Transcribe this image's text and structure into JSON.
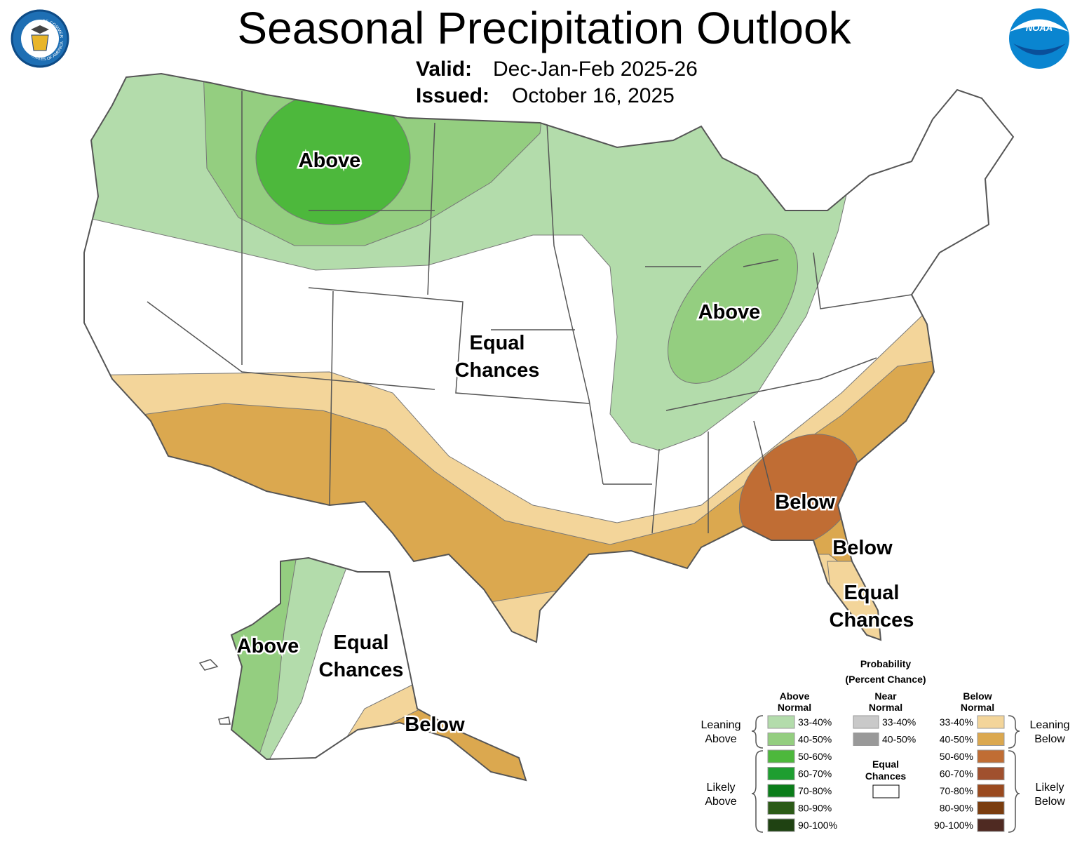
{
  "header": {
    "title": "Seasonal Precipitation Outlook",
    "valid_label": "Valid:",
    "valid": "Dec-Jan-Feb 2025-26",
    "issued_label": "Issued:",
    "issued": "October 16, 2025"
  },
  "logos": {
    "noaa": "NOAA",
    "commerce_top": "DEPARTMENT OF COMMERCE",
    "commerce_bottom": "UNITED STATES OF AMERICA"
  },
  "map_labels": [
    "Above",
    "Above",
    "Equal",
    "Chances",
    "Below",
    "Below",
    "Equal",
    "Chances",
    "Above",
    "Equal",
    "Chances",
    "Below"
  ],
  "legend": {
    "title": "Probability",
    "subtitle": "(Percent Chance)",
    "above": {
      "heading": [
        "Above",
        "Normal"
      ],
      "items": [
        {
          "label": "33-40%",
          "color": "#b3dcab"
        },
        {
          "label": "40-50%",
          "color": "#94ce80"
        },
        {
          "label": "50-60%",
          "color": "#4db83c"
        },
        {
          "label": "60-70%",
          "color": "#1e9e30"
        },
        {
          "label": "70-80%",
          "color": "#0b7d1a"
        },
        {
          "label": "80-90%",
          "color": "#2b5a17"
        },
        {
          "label": "90-100%",
          "color": "#1f4212"
        }
      ]
    },
    "near": {
      "heading": [
        "Near",
        "Normal"
      ],
      "items": [
        {
          "label": "33-40%",
          "color": "#c9c9c9"
        },
        {
          "label": "40-50%",
          "color": "#999999"
        }
      ]
    },
    "equal": {
      "heading": [
        "Equal",
        "Chances"
      ],
      "color": "#ffffff"
    },
    "below": {
      "heading": [
        "Below",
        "Normal"
      ],
      "items": [
        {
          "label": "33-40%",
          "color": "#f3d59a"
        },
        {
          "label": "40-50%",
          "color": "#dba84f"
        },
        {
          "label": "50-60%",
          "color": "#c06d34"
        },
        {
          "label": "60-70%",
          "color": "#a0502e"
        },
        {
          "label": "70-80%",
          "color": "#9a4a1f"
        },
        {
          "label": "80-90%",
          "color": "#7a3d0f"
        },
        {
          "label": "90-100%",
          "color": "#4f2a22"
        }
      ]
    },
    "side": {
      "leaning_above": [
        "Leaning",
        "Above"
      ],
      "likely_above": [
        "Likely",
        "Above"
      ],
      "leaning_below": [
        "Leaning",
        "Below"
      ],
      "likely_below": [
        "Likely",
        "Below"
      ]
    }
  }
}
